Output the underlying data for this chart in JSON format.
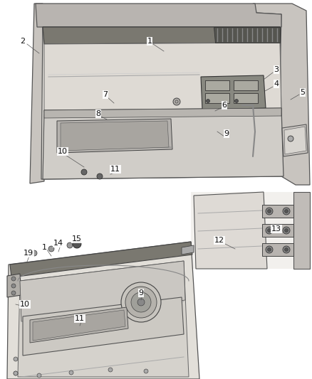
{
  "background_color": "#ffffff",
  "top_labels": [
    [
      "1",
      210,
      58
    ],
    [
      "2",
      32,
      58
    ],
    [
      "3",
      388,
      98
    ],
    [
      "4",
      388,
      118
    ],
    [
      "5",
      425,
      130
    ],
    [
      "6",
      315,
      148
    ],
    [
      "7",
      148,
      133
    ],
    [
      "8",
      138,
      160
    ],
    [
      "9",
      318,
      188
    ],
    [
      "10",
      88,
      213
    ],
    [
      "11",
      162,
      238
    ]
  ],
  "br_labels": [
    [
      "12",
      308,
      338
    ],
    [
      "13",
      388,
      322
    ]
  ],
  "bl_labels": [
    [
      "1",
      62,
      348
    ],
    [
      "14",
      82,
      342
    ],
    [
      "15",
      108,
      336
    ],
    [
      "19",
      40,
      356
    ],
    [
      "9",
      198,
      412
    ],
    [
      "10",
      35,
      428
    ],
    [
      "11",
      112,
      448
    ]
  ],
  "font_size": 8,
  "label_color": "#111111"
}
